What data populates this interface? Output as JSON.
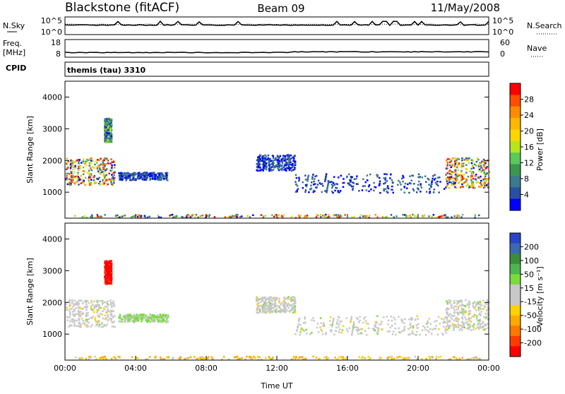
{
  "header": {
    "station": "Blackstone (fitACF)",
    "beam": "Beam 09",
    "date": "11/May/2008"
  },
  "panels": {
    "sky": {
      "left_label": "N.Sky",
      "right_label": "N.Search",
      "left_ticks": [
        "10^5",
        "10^0"
      ],
      "right_ticks": [
        "10^5",
        "10^0"
      ]
    },
    "freq": {
      "left_label": "Freq.",
      "left_unit": "[MHz]",
      "right_label": "Nave",
      "left_ticks": [
        "18",
        "8"
      ],
      "right_ticks": [
        "60",
        "0"
      ]
    },
    "cpid": {
      "label": "CPID",
      "value": "themis (tau) 3310"
    }
  },
  "colorbars": {
    "power": {
      "label": "Power [dB]",
      "ticks": [
        "28",
        "24",
        "20",
        "16",
        "12",
        "8",
        "4"
      ],
      "colors": [
        "#ff0000",
        "#ff4d00",
        "#ff8c00",
        "#ffb700",
        "#ffd700",
        "#b4e61e",
        "#5ac85a",
        "#3c9650",
        "#3a7a8c",
        "#2850a0",
        "#0000ff"
      ]
    },
    "velocity": {
      "label": "Velocity [m s⁻¹]",
      "ticks": [
        "200",
        "100",
        "50",
        "15",
        "-15",
        "-50",
        "-100",
        "-200"
      ],
      "colors": [
        "#2844c8",
        "#3a6ab4",
        "#3c8c3c",
        "#50b450",
        "#78dc3c",
        "#c8c8c8",
        "#c8c8c8",
        "#ffd200",
        "#ffaa00",
        "#ff7800",
        "#ff3c00",
        "#ff0000"
      ]
    }
  },
  "chart_data": [
    {
      "type": "heatmap",
      "name": "power",
      "ylabel": "Slant Range [km]",
      "xlim": [
        0,
        24
      ],
      "ylim": [
        180,
        4500
      ],
      "y_ticks": [
        1000,
        2000,
        3000,
        4000
      ],
      "x_ticks": [
        "00:00",
        "04:00",
        "08:00",
        "12:00",
        "16:00",
        "20:00",
        "00:00"
      ],
      "x_tick_hours": [
        0,
        4,
        8,
        12,
        16,
        20,
        24
      ],
      "echo_regions": [
        {
          "t": [
            0.0,
            2.8
          ],
          "r": [
            1250,
            2100
          ],
          "level": "high"
        },
        {
          "t": [
            2.2,
            2.6
          ],
          "r": [
            2600,
            3350
          ],
          "level": "medium"
        },
        {
          "t": [
            3.0,
            5.8
          ],
          "r": [
            1400,
            1650
          ],
          "level": "low"
        },
        {
          "t": [
            10.8,
            13.0
          ],
          "r": [
            1700,
            2200
          ],
          "level": "low"
        },
        {
          "t": [
            13.0,
            22.0
          ],
          "r": [
            1000,
            1600
          ],
          "level": "low"
        },
        {
          "t": [
            21.5,
            24.0
          ],
          "r": [
            1150,
            2100
          ],
          "level": "high"
        },
        {
          "t": [
            0.5,
            23.5
          ],
          "r": [
            220,
            320
          ],
          "level": "mixed"
        }
      ]
    },
    {
      "type": "heatmap",
      "name": "velocity",
      "ylabel": "Slant Range [km]",
      "xlabel": "Time UT",
      "xlim": [
        0,
        24
      ],
      "ylim": [
        180,
        4500
      ],
      "y_ticks": [
        1000,
        2000,
        3000,
        4000
      ],
      "x_ticks": [
        "00:00",
        "04:00",
        "08:00",
        "12:00",
        "16:00",
        "20:00",
        "00:00"
      ],
      "x_tick_hours": [
        0,
        4,
        8,
        12,
        16,
        20,
        24
      ],
      "echo_regions": [
        {
          "t": [
            0.0,
            2.8
          ],
          "r": [
            1250,
            2100
          ],
          "level": "near-zero"
        },
        {
          "t": [
            2.2,
            2.6
          ],
          "r": [
            2600,
            3350
          ],
          "level": "negative-high"
        },
        {
          "t": [
            3.0,
            5.8
          ],
          "r": [
            1400,
            1650
          ],
          "level": "positive-low"
        },
        {
          "t": [
            10.8,
            13.0
          ],
          "r": [
            1700,
            2200
          ],
          "level": "near-zero"
        },
        {
          "t": [
            13.0,
            22.0
          ],
          "r": [
            1000,
            1600
          ],
          "level": "near-zero"
        },
        {
          "t": [
            21.5,
            24.0
          ],
          "r": [
            1150,
            2100
          ],
          "level": "near-zero"
        },
        {
          "t": [
            0.5,
            23.5
          ],
          "r": [
            220,
            320
          ],
          "level": "negative-low"
        }
      ]
    }
  ]
}
